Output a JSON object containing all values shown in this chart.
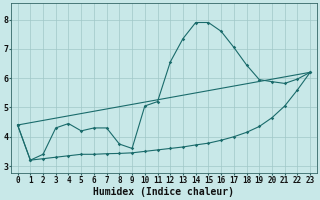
{
  "bg_color": "#c8e8e8",
  "line_color": "#1a6b6b",
  "grid_color": "#a0c8c8",
  "xlabel": "Humidex (Indice chaleur)",
  "xlabel_fontsize": 7,
  "tick_fontsize": 5.5,
  "ylabel_ticks": [
    3,
    4,
    5,
    6,
    7,
    8
  ],
  "xlim": [
    -0.5,
    23.5
  ],
  "ylim": [
    2.75,
    8.55
  ],
  "line1_x": [
    0,
    1,
    2,
    3,
    4,
    5,
    6,
    7,
    8,
    9,
    10,
    11,
    12,
    13,
    14,
    15,
    16,
    17,
    18,
    19,
    20,
    21,
    22,
    23
  ],
  "line1_y": [
    4.4,
    3.2,
    3.25,
    3.3,
    3.35,
    3.4,
    3.4,
    3.42,
    3.43,
    3.45,
    3.5,
    3.55,
    3.6,
    3.65,
    3.72,
    3.78,
    3.88,
    4.0,
    4.15,
    4.35,
    4.65,
    5.05,
    5.6,
    6.2
  ],
  "line2_x": [
    0,
    1,
    2,
    3,
    4,
    5,
    6,
    7,
    8,
    9,
    10,
    11,
    12,
    13,
    14,
    15,
    16,
    17,
    18,
    19,
    20,
    21,
    22,
    23
  ],
  "line2_y": [
    4.4,
    3.2,
    3.4,
    4.3,
    4.45,
    4.2,
    4.3,
    4.3,
    3.75,
    3.6,
    5.05,
    5.2,
    6.55,
    7.35,
    7.9,
    7.9,
    7.6,
    7.05,
    6.45,
    5.95,
    5.88,
    5.82,
    5.97,
    6.2
  ],
  "line3_x": [
    0,
    23
  ],
  "line3_y": [
    4.4,
    6.2
  ]
}
